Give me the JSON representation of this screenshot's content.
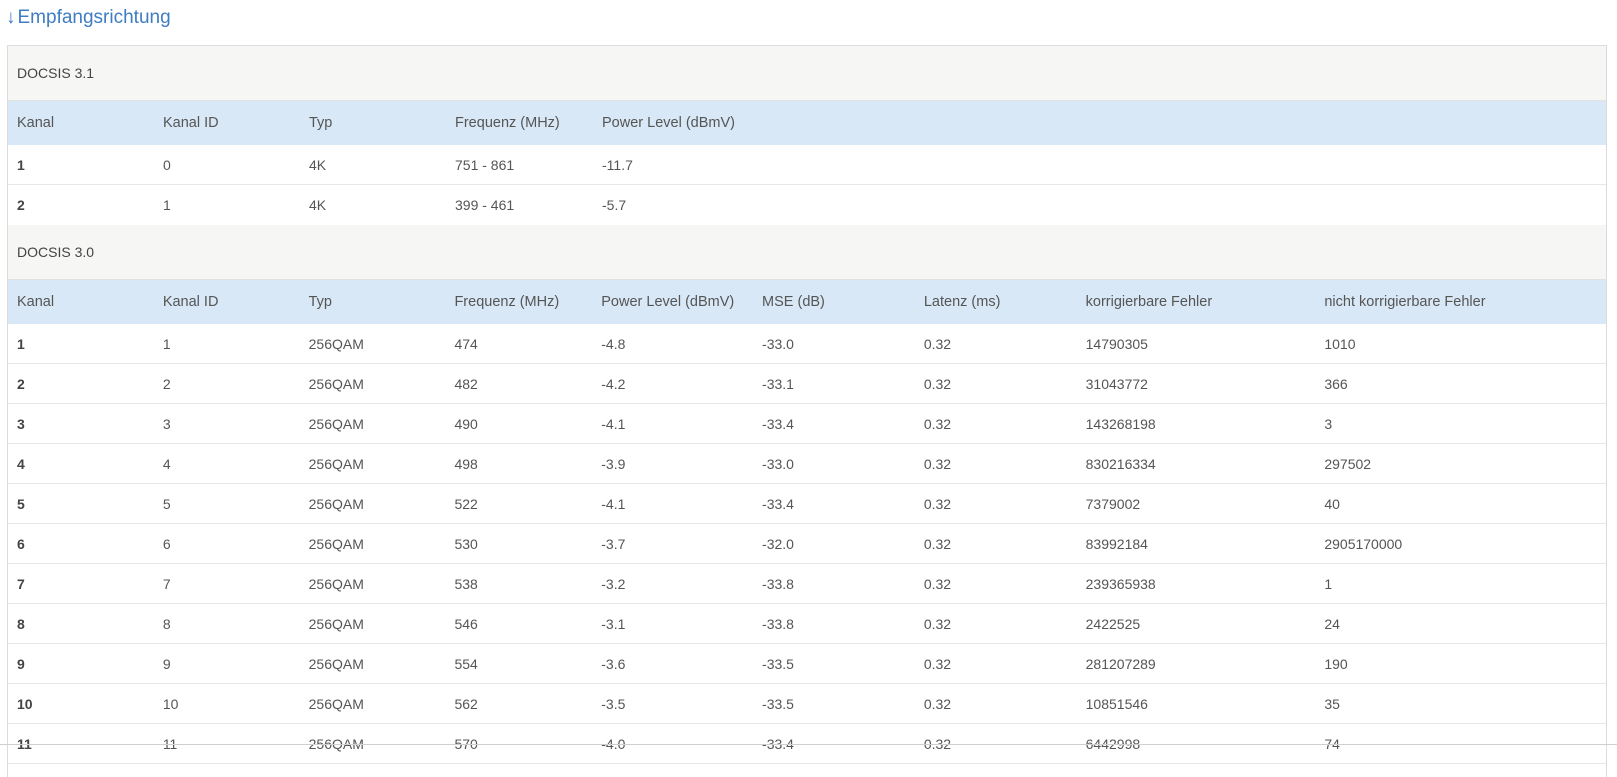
{
  "heading": {
    "arrow": "↓",
    "label": "Empfangsrichtung"
  },
  "docsis31": {
    "title": "DOCSIS 3.1",
    "columns": [
      "Kanal",
      "Kanal ID",
      "Typ",
      "Frequenz (MHz)",
      "Power Level (dBmV)"
    ],
    "rows": [
      [
        "1",
        "0",
        "4K",
        "751 - 861",
        "-11.7"
      ],
      [
        "2",
        "1",
        "4K",
        "399 - 461",
        "-5.7"
      ]
    ]
  },
  "docsis30": {
    "title": "DOCSIS 3.0",
    "columns": [
      "Kanal",
      "Kanal ID",
      "Typ",
      "Frequenz (MHz)",
      "Power Level (dBmV)",
      "MSE (dB)",
      "Latenz (ms)",
      "korrigierbare Fehler",
      "nicht korrigierbare Fehler"
    ],
    "rows": [
      [
        "1",
        "1",
        "256QAM",
        "474",
        "-4.8",
        "-33.0",
        "0.32",
        "14790305",
        "1010"
      ],
      [
        "2",
        "2",
        "256QAM",
        "482",
        "-4.2",
        "-33.1",
        "0.32",
        "31043772",
        "366"
      ],
      [
        "3",
        "3",
        "256QAM",
        "490",
        "-4.1",
        "-33.4",
        "0.32",
        "143268198",
        "3"
      ],
      [
        "4",
        "4",
        "256QAM",
        "498",
        "-3.9",
        "-33.0",
        "0.32",
        "830216334",
        "297502"
      ],
      [
        "5",
        "5",
        "256QAM",
        "522",
        "-4.1",
        "-33.4",
        "0.32",
        "7379002",
        "40"
      ],
      [
        "6",
        "6",
        "256QAM",
        "530",
        "-3.7",
        "-32.0",
        "0.32",
        "83992184",
        "2905170000"
      ],
      [
        "7",
        "7",
        "256QAM",
        "538",
        "-3.2",
        "-33.8",
        "0.32",
        "239365938",
        "1"
      ],
      [
        "8",
        "8",
        "256QAM",
        "546",
        "-3.1",
        "-33.8",
        "0.32",
        "2422525",
        "24"
      ],
      [
        "9",
        "9",
        "256QAM",
        "554",
        "-3.6",
        "-33.5",
        "0.32",
        "281207289",
        "190"
      ],
      [
        "10",
        "10",
        "256QAM",
        "562",
        "-3.5",
        "-33.5",
        "0.32",
        "10851546",
        "35"
      ],
      [
        "11",
        "11",
        "256QAM",
        "570",
        "-4.0",
        "-33.4",
        "0.32",
        "6442998",
        "74"
      ]
    ]
  }
}
